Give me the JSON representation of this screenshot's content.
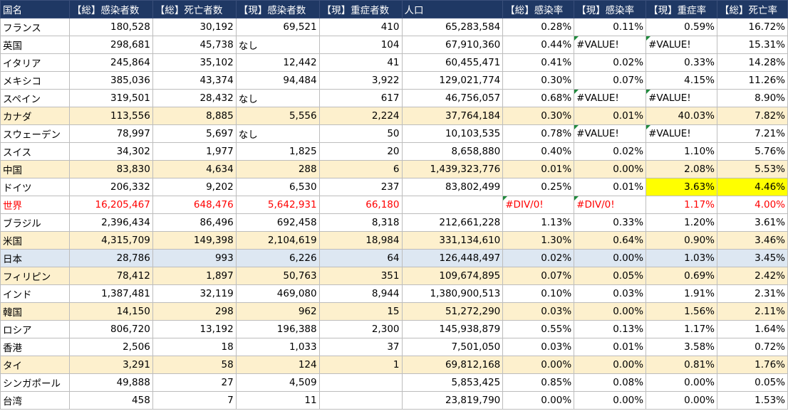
{
  "colors": {
    "header_bg": "#1f3864",
    "header_fg": "#ffffff",
    "highlight_orange": "#fdf0cd",
    "highlight_blue": "#dde7f2",
    "highlight_yellow": "#ffff00",
    "world_text": "#ff0000",
    "error_marker": "#1f8a3c"
  },
  "headers": [
    "国名",
    "【総】感染者数",
    "【総】死亡者数",
    "【現】感染者数",
    "【現】重症者数",
    "人口",
    "【総】感染率",
    "【現】感染率",
    "【現】重症率",
    "【総】死亡率"
  ],
  "rows": [
    {
      "cells": [
        "フランス",
        "180,528",
        "30,192",
        "69,521",
        "410",
        "65,283,584",
        "0.28%",
        "0.11%",
        "0.59%",
        "16.72%"
      ],
      "style": "",
      "red": false,
      "yellow_cols": [],
      "tri_cols": []
    },
    {
      "cells": [
        "英国",
        "298,681",
        "45,738",
        "なし",
        "104",
        "67,910,360",
        "0.44%",
        "#VALUE!",
        "#VALUE!",
        "15.31%"
      ],
      "style": "",
      "red": false,
      "yellow_cols": [],
      "tri_cols": [
        7,
        8
      ]
    },
    {
      "cells": [
        "イタリア",
        "245,864",
        "35,102",
        "12,442",
        "41",
        "60,455,471",
        "0.41%",
        "0.02%",
        "0.33%",
        "14.28%"
      ],
      "style": "",
      "red": false,
      "yellow_cols": [],
      "tri_cols": []
    },
    {
      "cells": [
        "メキシコ",
        "385,036",
        "43,374",
        "94,484",
        "3,922",
        "129,021,774",
        "0.30%",
        "0.07%",
        "4.15%",
        "11.26%"
      ],
      "style": "",
      "red": false,
      "yellow_cols": [],
      "tri_cols": []
    },
    {
      "cells": [
        "スペイン",
        "319,501",
        "28,432",
        "なし",
        "617",
        "46,756,057",
        "0.68%",
        "#VALUE!",
        "#VALUE!",
        "8.90%"
      ],
      "style": "",
      "red": false,
      "yellow_cols": [],
      "tri_cols": [
        7,
        8
      ]
    },
    {
      "cells": [
        "カナダ",
        "113,556",
        "8,885",
        "5,556",
        "2,224",
        "37,764,184",
        "0.30%",
        "0.01%",
        "40.03%",
        "7.82%"
      ],
      "style": "orange",
      "red": false,
      "yellow_cols": [],
      "tri_cols": []
    },
    {
      "cells": [
        "スウェーデン",
        "78,997",
        "5,697",
        "なし",
        "50",
        "10,103,535",
        "0.78%",
        "#VALUE!",
        "#VALUE!",
        "7.21%"
      ],
      "style": "",
      "red": false,
      "yellow_cols": [],
      "tri_cols": [
        7,
        8
      ]
    },
    {
      "cells": [
        "スイス",
        "34,302",
        "1,977",
        "1,825",
        "20",
        "8,658,880",
        "0.40%",
        "0.02%",
        "1.10%",
        "5.76%"
      ],
      "style": "",
      "red": false,
      "yellow_cols": [],
      "tri_cols": []
    },
    {
      "cells": [
        "中国",
        "83,830",
        "4,634",
        "288",
        "6",
        "1,439,323,776",
        "0.01%",
        "0.00%",
        "2.08%",
        "5.53%"
      ],
      "style": "orange",
      "red": false,
      "yellow_cols": [],
      "tri_cols": []
    },
    {
      "cells": [
        "ドイツ",
        "206,332",
        "9,202",
        "6,530",
        "237",
        "83,802,499",
        "0.25%",
        "0.01%",
        "3.63%",
        "4.46%"
      ],
      "style": "",
      "red": false,
      "yellow_cols": [
        8,
        9
      ],
      "tri_cols": []
    },
    {
      "cells": [
        "世界",
        "16,205,467",
        "648,476",
        "5,642,931",
        "66,180",
        "",
        "#DIV/0!",
        "#DIV/0!",
        "1.17%",
        "4.00%"
      ],
      "style": "",
      "red": true,
      "yellow_cols": [],
      "tri_cols": [
        6,
        7
      ]
    },
    {
      "cells": [
        "ブラジル",
        "2,396,434",
        "86,496",
        "692,458",
        "8,318",
        "212,661,228",
        "1.13%",
        "0.33%",
        "1.20%",
        "3.61%"
      ],
      "style": "",
      "red": false,
      "yellow_cols": [],
      "tri_cols": []
    },
    {
      "cells": [
        "米国",
        "4,315,709",
        "149,398",
        "2,104,619",
        "18,984",
        "331,134,610",
        "1.30%",
        "0.64%",
        "0.90%",
        "3.46%"
      ],
      "style": "orange",
      "red": false,
      "yellow_cols": [],
      "tri_cols": []
    },
    {
      "cells": [
        "日本",
        "28,786",
        "993",
        "6,226",
        "64",
        "126,448,497",
        "0.02%",
        "0.00%",
        "1.03%",
        "3.45%"
      ],
      "style": "blue",
      "red": false,
      "yellow_cols": [],
      "tri_cols": []
    },
    {
      "cells": [
        "フィリピン",
        "78,412",
        "1,897",
        "50,763",
        "351",
        "109,674,895",
        "0.07%",
        "0.05%",
        "0.69%",
        "2.42%"
      ],
      "style": "orange",
      "red": false,
      "yellow_cols": [],
      "tri_cols": []
    },
    {
      "cells": [
        "インド",
        "1,387,481",
        "32,119",
        "469,080",
        "8,944",
        "1,380,900,513",
        "0.10%",
        "0.03%",
        "1.91%",
        "2.31%"
      ],
      "style": "",
      "red": false,
      "yellow_cols": [],
      "tri_cols": []
    },
    {
      "cells": [
        "韓国",
        "14,150",
        "298",
        "962",
        "15",
        "51,272,290",
        "0.03%",
        "0.00%",
        "1.56%",
        "2.11%"
      ],
      "style": "orange",
      "red": false,
      "yellow_cols": [],
      "tri_cols": []
    },
    {
      "cells": [
        "ロシア",
        "806,720",
        "13,192",
        "196,388",
        "2,300",
        "145,938,879",
        "0.55%",
        "0.13%",
        "1.17%",
        "1.64%"
      ],
      "style": "",
      "red": false,
      "yellow_cols": [],
      "tri_cols": []
    },
    {
      "cells": [
        "香港",
        "2,506",
        "18",
        "1,033",
        "37",
        "7,501,050",
        "0.03%",
        "0.01%",
        "3.58%",
        "0.72%"
      ],
      "style": "",
      "red": false,
      "yellow_cols": [],
      "tri_cols": []
    },
    {
      "cells": [
        "タイ",
        "3,291",
        "58",
        "124",
        "1",
        "69,812,168",
        "0.00%",
        "0.00%",
        "0.81%",
        "1.76%"
      ],
      "style": "orange",
      "red": false,
      "yellow_cols": [],
      "tri_cols": []
    },
    {
      "cells": [
        "シンガポール",
        "49,888",
        "27",
        "4,509",
        "",
        "5,853,425",
        "0.85%",
        "0.08%",
        "0.00%",
        "0.05%"
      ],
      "style": "",
      "red": false,
      "yellow_cols": [],
      "tri_cols": []
    },
    {
      "cells": [
        "台湾",
        "458",
        "7",
        "11",
        "",
        "23,819,790",
        "0.00%",
        "0.00%",
        "0.00%",
        "1.53%"
      ],
      "style": "",
      "red": false,
      "yellow_cols": [],
      "tri_cols": []
    }
  ]
}
